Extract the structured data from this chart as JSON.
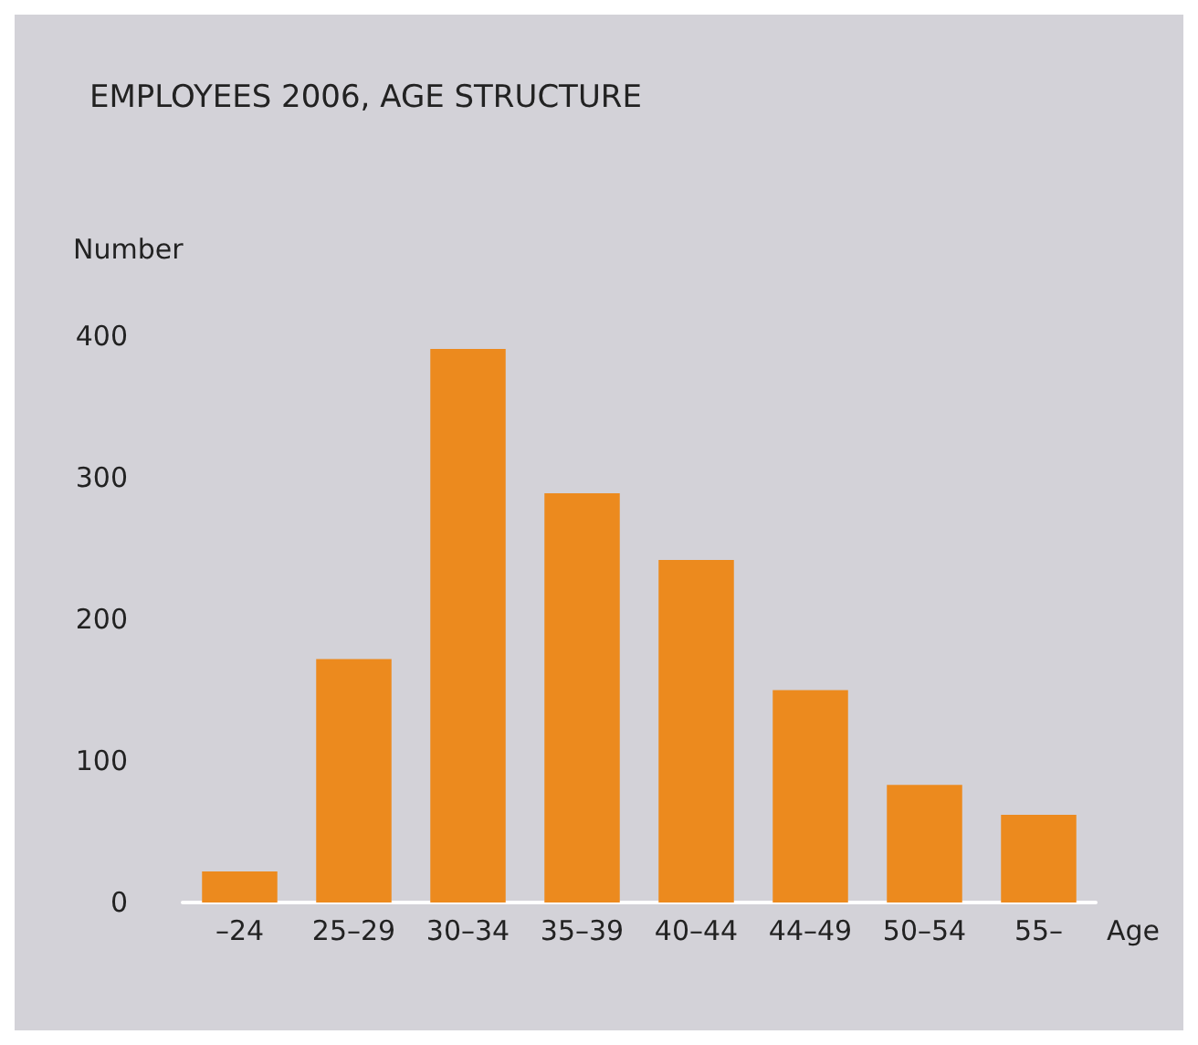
{
  "chart_data": {
    "type": "bar",
    "title": "EMPLOYEES 2006, AGE STRUCTURE",
    "ylabel": "Number",
    "xlabel": "Age",
    "categories": [
      "–24",
      "25–29",
      "30–34",
      "35–39",
      "40–44",
      "44–49",
      "50–54",
      "55–"
    ],
    "values": [
      22,
      172,
      391,
      289,
      242,
      150,
      83,
      62
    ],
    "color": "#ec8a1e",
    "ylim": [
      0,
      400
    ],
    "yticks": [
      0,
      100,
      200,
      300,
      400
    ],
    "grid": false
  }
}
